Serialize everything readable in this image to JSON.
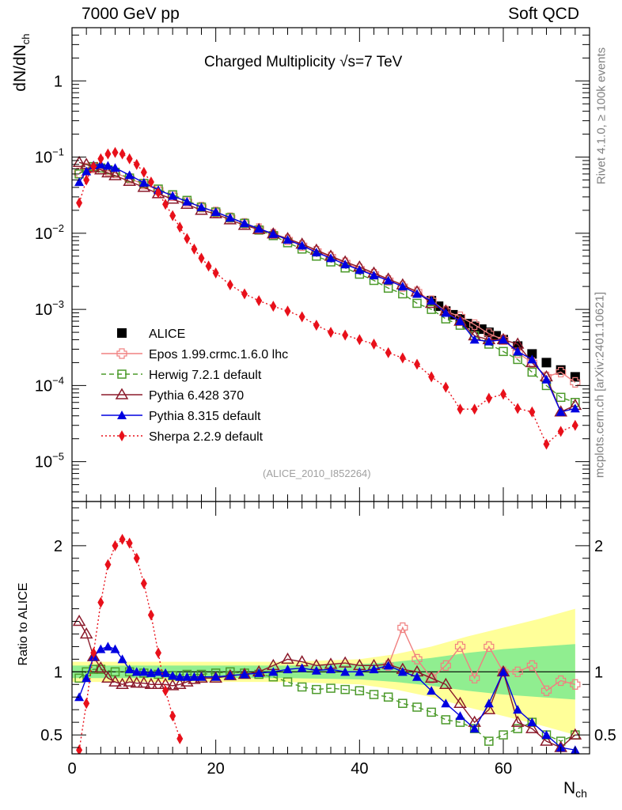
{
  "header": {
    "left": "7000 GeV pp",
    "right": "Soft QCD"
  },
  "side_labels": {
    "top": "Rivet 4.1.0, ≥ 100k events",
    "bottom": "mcplots.cern.ch [arXiv:2401.10621]"
  },
  "analysis_id": "(ALICE_2010_I852264)",
  "chart_data": [
    {
      "type": "scatter",
      "title": "Charged Multiplicity √s=7 TeV",
      "ylabel": "dN/dNch",
      "ylabel_main": "dN/dN",
      "ylabel_sub": "ch",
      "yscale": "log",
      "ylim": [
        3e-06,
        5
      ],
      "xlim": [
        0,
        72
      ],
      "y_ticks": [
        {
          "value": 1,
          "label": "1"
        },
        {
          "value": 0.1,
          "base": "10",
          "exp": "−1"
        },
        {
          "value": 0.01,
          "base": "10",
          "exp": "−2"
        },
        {
          "value": 0.001,
          "base": "10",
          "exp": "−3"
        },
        {
          "value": 0.0001,
          "base": "10",
          "exp": "−4"
        },
        {
          "value": 1e-05,
          "base": "10",
          "exp": "−5"
        }
      ],
      "legend_position": "bottom-left",
      "series": [
        {
          "name": "ALICE",
          "color": "#000000",
          "marker": "square-filled",
          "line": "none",
          "x": [
            50,
            51,
            52,
            53,
            54,
            55,
            56,
            57,
            58,
            59,
            60,
            62,
            64,
            66,
            68,
            70
          ],
          "y": [
            0.0013,
            0.0011,
            0.00095,
            0.00085,
            0.00075,
            0.00065,
            0.0006,
            0.00055,
            0.0005,
            0.00045,
            0.0004,
            0.00033,
            0.00026,
            0.0002,
            0.00016,
            0.00013
          ]
        },
        {
          "name": "Epos 1.99.crmc.1.6.0 lhc",
          "color": "#f08080",
          "marker": "plus-open",
          "line": "solid",
          "x": [
            1,
            2,
            3,
            4,
            5,
            6,
            8,
            10,
            12,
            14,
            16,
            18,
            20,
            22,
            24,
            26,
            28,
            30,
            32,
            34,
            36,
            38,
            40,
            42,
            44,
            46,
            48,
            50,
            52,
            54,
            56,
            58,
            60,
            62,
            64,
            66,
            68,
            70
          ],
          "y": [
            0.062,
            0.072,
            0.072,
            0.07,
            0.066,
            0.062,
            0.052,
            0.044,
            0.037,
            0.031,
            0.026,
            0.022,
            0.019,
            0.016,
            0.0135,
            0.0115,
            0.0097,
            0.0082,
            0.0069,
            0.0058,
            0.0049,
            0.0041,
            0.0034,
            0.0029,
            0.0024,
            0.002,
            0.0017,
            0.0013,
            0.00095,
            0.0008,
            0.00063,
            0.00048,
            0.0004,
            0.00027,
            0.0002,
            0.00013,
            0.00015,
            0.00011
          ]
        },
        {
          "name": "Herwig 7.2.1 default",
          "color": "#4c9a2a",
          "marker": "square-open",
          "line": "dashed",
          "x": [
            1,
            2,
            3,
            4,
            5,
            6,
            8,
            10,
            12,
            14,
            16,
            18,
            20,
            22,
            24,
            26,
            28,
            30,
            32,
            34,
            36,
            38,
            40,
            42,
            44,
            46,
            48,
            50,
            52,
            54,
            56,
            58,
            60,
            62,
            64,
            66,
            68,
            70
          ],
          "y": [
            0.06,
            0.071,
            0.075,
            0.072,
            0.068,
            0.063,
            0.053,
            0.045,
            0.038,
            0.032,
            0.027,
            0.022,
            0.019,
            0.016,
            0.0135,
            0.011,
            0.0093,
            0.0075,
            0.0062,
            0.005,
            0.0042,
            0.0035,
            0.0029,
            0.0024,
            0.0019,
            0.0016,
            0.0012,
            0.001,
            0.00075,
            0.00062,
            0.00045,
            0.00035,
            0.00028,
            0.00022,
            0.00015,
            0.0001,
            7e-05,
            6e-05
          ]
        },
        {
          "name": "Pythia 6.428 370",
          "color": "#8b1a2b",
          "marker": "triangle-open",
          "line": "solid",
          "x": [
            1,
            2,
            3,
            4,
            5,
            6,
            8,
            10,
            12,
            14,
            16,
            18,
            20,
            22,
            24,
            26,
            28,
            30,
            32,
            34,
            36,
            38,
            40,
            42,
            44,
            46,
            48,
            50,
            52,
            54,
            56,
            58,
            60,
            62,
            64,
            66,
            68,
            70
          ],
          "y": [
            0.085,
            0.08,
            0.073,
            0.068,
            0.062,
            0.057,
            0.048,
            0.04,
            0.033,
            0.028,
            0.024,
            0.02,
            0.018,
            0.015,
            0.0127,
            0.0112,
            0.0098,
            0.0085,
            0.0072,
            0.006,
            0.005,
            0.0042,
            0.0036,
            0.003,
            0.0025,
            0.0021,
            0.0017,
            0.0012,
            0.00095,
            0.0007,
            0.00045,
            0.0004,
            0.0004,
            0.00035,
            0.0002,
            0.00013,
            4.5e-05,
            5.5e-05
          ]
        },
        {
          "name": "Pythia 8.315 default",
          "color": "#0000e0",
          "marker": "triangle-filled",
          "line": "solid",
          "x": [
            1,
            2,
            3,
            4,
            5,
            6,
            8,
            10,
            12,
            14,
            16,
            18,
            20,
            22,
            24,
            26,
            28,
            30,
            32,
            34,
            36,
            38,
            40,
            42,
            44,
            46,
            48,
            50,
            52,
            54,
            56,
            58,
            60,
            62,
            64,
            66,
            68,
            70
          ],
          "y": [
            0.047,
            0.065,
            0.078,
            0.08,
            0.077,
            0.072,
            0.058,
            0.046,
            0.037,
            0.031,
            0.026,
            0.022,
            0.019,
            0.016,
            0.0135,
            0.0115,
            0.0098,
            0.0082,
            0.0069,
            0.0056,
            0.0047,
            0.0039,
            0.0033,
            0.0028,
            0.0024,
            0.002,
            0.0016,
            0.0013,
            0.0009,
            0.0007,
            0.0004,
            0.00038,
            0.0004,
            0.00028,
            0.00022,
            0.00012,
            4.5e-05,
            5e-05
          ]
        },
        {
          "name": "Sherpa 2.2.9 default",
          "color": "#e8101a",
          "marker": "diamond-filled",
          "line": "dotted",
          "x": [
            1,
            2,
            3,
            4,
            5,
            6,
            7,
            8,
            9,
            10,
            11,
            12,
            13,
            14,
            15,
            16,
            17,
            18,
            19,
            20,
            22,
            24,
            26,
            28,
            30,
            32,
            34,
            36,
            38,
            40,
            42,
            44,
            46,
            48,
            50,
            52,
            54,
            56,
            58,
            60,
            62,
            64,
            66,
            68,
            70
          ],
          "y": [
            0.025,
            0.05,
            0.075,
            0.095,
            0.11,
            0.115,
            0.11,
            0.095,
            0.08,
            0.063,
            0.047,
            0.034,
            0.024,
            0.017,
            0.012,
            0.0085,
            0.0062,
            0.0047,
            0.0037,
            0.003,
            0.0021,
            0.0016,
            0.0013,
            0.0011,
            0.00095,
            0.0008,
            0.00062,
            0.0005,
            0.00046,
            0.0004,
            0.00035,
            0.00027,
            0.00023,
            0.00019,
            0.00013,
            9.5e-05,
            4.9e-05,
            4.9e-05,
            6.8e-05,
            7.7e-05,
            5e-05,
            4.5e-05,
            1.7e-05,
            2.5e-05,
            3e-05
          ]
        }
      ]
    },
    {
      "type": "scatter",
      "ylabel": "Ratio to ALICE",
      "xlabel": "Nch",
      "xlabel_main": "N",
      "xlabel_sub": "ch",
      "ylim": [
        0.35,
        2.35
      ],
      "xlim": [
        0,
        72
      ],
      "x_ticks": [
        0,
        20,
        40,
        60
      ],
      "y_ticks": [
        0.5,
        1,
        2
      ],
      "reference_line": 1,
      "uncertainty_bands": {
        "x": [
          0,
          10,
          20,
          30,
          40,
          45,
          50,
          55,
          60,
          65,
          70
        ],
        "inner_half_width": [
          0.05,
          0.05,
          0.05,
          0.05,
          0.06,
          0.08,
          0.11,
          0.15,
          0.18,
          0.2,
          0.22
        ],
        "outer_half_width": [
          0.08,
          0.08,
          0.08,
          0.08,
          0.1,
          0.14,
          0.2,
          0.28,
          0.35,
          0.42,
          0.5
        ],
        "inner_color": "#90ee90",
        "outer_color": "#ffff99"
      },
      "series": [
        {
          "name": "Epos 1.99.crmc.1.6.0 lhc",
          "color": "#f08080",
          "x": [
            44,
            46,
            48,
            50,
            52,
            54,
            56,
            58,
            60,
            62,
            64,
            66,
            68,
            70
          ],
          "y": [
            1.05,
            1.35,
            1.1,
            0.95,
            1.05,
            1.2,
            0.95,
            1.2,
            1.0,
            1.0,
            1.05,
            0.85,
            0.93,
            0.9
          ]
        },
        {
          "name": "Herwig 7.2.1 default",
          "color": "#4c9a2a",
          "x": [
            1,
            2,
            3,
            4,
            6,
            8,
            10,
            12,
            14,
            16,
            18,
            20,
            22,
            24,
            26,
            28,
            30,
            32,
            34,
            36,
            38,
            40,
            42,
            44,
            46,
            48,
            50,
            52,
            54,
            56,
            58,
            60,
            62,
            64,
            66,
            68,
            70
          ],
          "y": [
            0.95,
            1.0,
            1.02,
            1.02,
            1.0,
            1.0,
            0.99,
            0.98,
            0.97,
            0.98,
            0.98,
            0.99,
            1.0,
            0.99,
            0.98,
            0.96,
            0.92,
            0.88,
            0.86,
            0.87,
            0.86,
            0.85,
            0.82,
            0.8,
            0.75,
            0.72,
            0.68,
            0.62,
            0.6,
            0.55,
            0.45,
            0.5,
            0.55,
            0.6,
            0.5,
            0.45,
            0.5
          ]
        },
        {
          "name": "Pythia 6.428 370",
          "color": "#8b1a2b",
          "x": [
            1,
            2,
            3,
            4,
            5,
            6,
            7,
            8,
            9,
            10,
            11,
            12,
            13,
            14,
            15,
            16,
            17,
            18,
            20,
            22,
            24,
            26,
            28,
            30,
            32,
            34,
            36,
            38,
            40,
            42,
            44,
            46,
            48,
            50,
            52,
            54,
            56,
            58,
            60,
            62,
            64,
            66,
            68,
            70
          ],
          "y": [
            1.4,
            1.3,
            1.12,
            1.03,
            0.95,
            0.92,
            0.9,
            0.92,
            0.91,
            0.91,
            0.9,
            0.9,
            0.9,
            0.89,
            0.9,
            0.92,
            0.94,
            0.95,
            0.95,
            0.97,
            0.98,
            1.0,
            1.05,
            1.1,
            1.08,
            1.05,
            1.06,
            1.07,
            1.05,
            1.05,
            1.06,
            1.02,
            1.0,
            0.95,
            0.9,
            0.75,
            0.6,
            0.7,
            1.0,
            0.6,
            0.55,
            0.45,
            0.4,
            0.5
          ]
        },
        {
          "name": "Pythia 8.315 default",
          "color": "#0000e0",
          "x": [
            1,
            2,
            3,
            4,
            5,
            6,
            7,
            8,
            9,
            10,
            11,
            12,
            13,
            14,
            15,
            16,
            17,
            18,
            20,
            22,
            24,
            26,
            28,
            30,
            32,
            34,
            36,
            38,
            40,
            42,
            44,
            46,
            48,
            50,
            52,
            54,
            56,
            58,
            60,
            62,
            64,
            66,
            68,
            70
          ],
          "y": [
            0.8,
            0.95,
            1.12,
            1.18,
            1.2,
            1.18,
            1.1,
            1.02,
            1.0,
            1.0,
            0.99,
            1.0,
            0.99,
            0.97,
            0.96,
            0.96,
            0.96,
            0.96,
            0.96,
            0.97,
            0.98,
            0.99,
            1.0,
            1.02,
            1.03,
            1.01,
            1.02,
            1.0,
            1.0,
            1.02,
            1.05,
            1.0,
            0.96,
            0.85,
            0.75,
            0.65,
            0.55,
            0.75,
            1.0,
            0.7,
            0.6,
            0.5,
            0.4,
            0.38
          ]
        },
        {
          "name": "Sherpa 2.2.9 default",
          "color": "#e8101a",
          "x": [
            1,
            2,
            3,
            4,
            5,
            6,
            7,
            8,
            9,
            10,
            11,
            12,
            13,
            14,
            15
          ],
          "y": [
            0.38,
            0.75,
            1.15,
            1.55,
            1.85,
            2.0,
            2.05,
            2.02,
            1.9,
            1.7,
            1.45,
            1.15,
            0.85,
            0.65,
            0.47
          ]
        }
      ]
    }
  ]
}
